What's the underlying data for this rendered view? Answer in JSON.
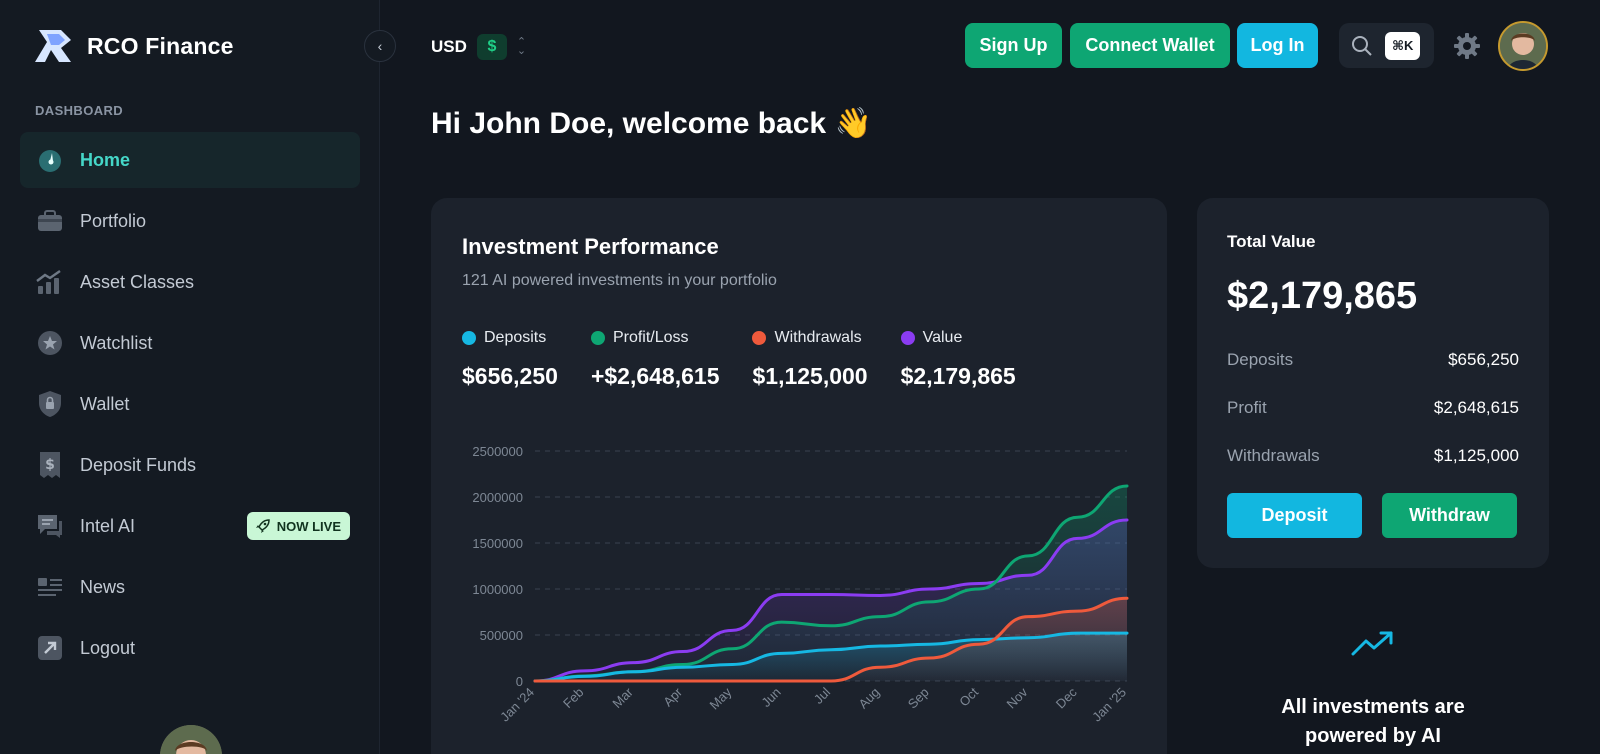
{
  "brand": {
    "name": "RCO Finance"
  },
  "sidebar": {
    "section_label": "DASHBOARD",
    "items": [
      {
        "label": "Home",
        "icon": "gauge-icon",
        "active": true
      },
      {
        "label": "Portfolio",
        "icon": "briefcase-icon"
      },
      {
        "label": "Asset Classes",
        "icon": "chart-growth-icon"
      },
      {
        "label": "Watchlist",
        "icon": "star-icon"
      },
      {
        "label": "Wallet",
        "icon": "shield-lock-icon"
      },
      {
        "label": "Deposit Funds",
        "icon": "dollar-receipt-icon"
      },
      {
        "label": "Intel AI",
        "icon": "chat-icon",
        "badge": "NOW LIVE"
      },
      {
        "label": "News",
        "icon": "news-icon"
      },
      {
        "label": "Logout",
        "icon": "arrow-out-icon"
      }
    ]
  },
  "topbar": {
    "currency": "USD",
    "currency_symbol": "$",
    "signup": "Sign Up",
    "connect_wallet": "Connect Wallet",
    "login": "Log In",
    "shortcut": "⌘K"
  },
  "greeting": "Hi John Doe, welcome back 👋",
  "performance": {
    "title": "Investment Performance",
    "subtitle": "121 AI powered investments in your portfolio",
    "legend": [
      {
        "name": "Deposits",
        "value": "$656,250",
        "color": "#16b8e3"
      },
      {
        "name": "Profit/Loss",
        "value": "+$2,648,615",
        "color": "#0ea673"
      },
      {
        "name": "Withdrawals",
        "value": "$1,125,000",
        "color": "#ef5a3c"
      },
      {
        "name": "Value",
        "value": "$2,179,865",
        "color": "#8b3cf2"
      }
    ]
  },
  "chart_data": {
    "type": "area",
    "categories": [
      "Jan '24",
      "Feb",
      "Mar",
      "Apr",
      "May",
      "Jun",
      "Jul",
      "Aug",
      "Sep",
      "Oct",
      "Nov",
      "Dec",
      "Jan '25"
    ],
    "ylim": [
      0,
      2500000
    ],
    "yticks": [
      "2500000",
      "2000000",
      "1500000",
      "1000000",
      "500000",
      "0"
    ],
    "grid": true,
    "series": [
      {
        "name": "Deposits",
        "color": "#16b8e3",
        "values": [
          0,
          50000,
          100000,
          150000,
          180000,
          300000,
          340000,
          380000,
          400000,
          450000,
          470000,
          520000,
          520000
        ]
      },
      {
        "name": "Profit/Loss",
        "color": "#0ea673",
        "values": [
          0,
          55000,
          100000,
          180000,
          350000,
          640000,
          600000,
          700000,
          860000,
          1000000,
          1360000,
          1780000,
          2120000
        ]
      },
      {
        "name": "Withdrawals",
        "color": "#ef5a3c",
        "values": [
          0,
          0,
          0,
          0,
          0,
          0,
          0,
          150000,
          250000,
          400000,
          700000,
          760000,
          900000
        ]
      },
      {
        "name": "Value",
        "color": "#8b3cf2",
        "values": [
          0,
          110000,
          200000,
          320000,
          550000,
          940000,
          940000,
          930000,
          1000000,
          1060000,
          1150000,
          1550000,
          1750000
        ]
      }
    ]
  },
  "total": {
    "label": "Total Value",
    "amount": "$2,179,865",
    "rows": [
      {
        "k": "Deposits",
        "v": "$656,250"
      },
      {
        "k": "Profit",
        "v": "$2,648,615"
      },
      {
        "k": "Withdrawals",
        "v": "$1,125,000"
      }
    ],
    "deposit": "Deposit",
    "withdraw": "Withdraw"
  },
  "ai_promo": {
    "line1": "All investments are",
    "line2": "powered by AI"
  }
}
